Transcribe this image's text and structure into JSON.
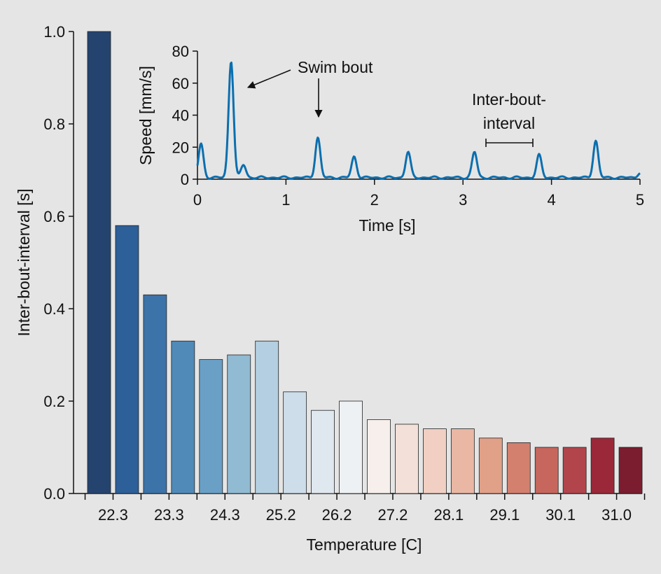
{
  "chart_data": [
    {
      "type": "bar",
      "title": "",
      "xlabel": "Temperature [C]",
      "ylabel": "Inter-bout-interval [s]",
      "ylim": [
        0,
        1.0
      ],
      "yticks": [
        "0.0",
        "0.2",
        "0.4",
        "0.6",
        "0.8",
        "1.0"
      ],
      "xtick_labels": [
        "22.3",
        "23.3",
        "24.3",
        "25.2",
        "26.2",
        "27.2",
        "28.1",
        "29.1",
        "30.1",
        "31.0"
      ],
      "values": [
        1.0,
        0.58,
        0.43,
        0.33,
        0.29,
        0.3,
        0.33,
        0.22,
        0.18,
        0.2,
        0.16,
        0.15,
        0.14,
        0.14,
        0.12,
        0.11,
        0.1,
        0.1,
        0.12,
        0.1
      ],
      "colors": [
        "#24446f",
        "#2d5f98",
        "#3c73a8",
        "#4f8ab8",
        "#6a9fc6",
        "#91bad3",
        "#b3cfe1",
        "#cddde9",
        "#dfe7ef",
        "#eef1f4",
        "#f6efec",
        "#f3e0d8",
        "#f1cfc2",
        "#e9b7a4",
        "#e1a088",
        "#d4806e",
        "#c6665c",
        "#b1454b",
        "#9b2838",
        "#7b1d2e"
      ],
      "grid": false
    },
    {
      "type": "line",
      "title": "",
      "xlabel": "Time [s]",
      "ylabel": "Speed [mm/s]",
      "xlim": [
        0,
        5
      ],
      "ylim": [
        0,
        80
      ],
      "xticks": [
        "0",
        "1",
        "2",
        "3",
        "4",
        "5"
      ],
      "yticks": [
        "0",
        "20",
        "40",
        "60",
        "80"
      ],
      "color": "#0b6faf",
      "series": [
        {
          "baseline": 1,
          "peaks": [
            {
              "t": 0.04,
              "speed": 22
            },
            {
              "t": 0.38,
              "speed": 74
            },
            {
              "t": 0.52,
              "speed": 9
            },
            {
              "t": 1.36,
              "speed": 26
            },
            {
              "t": 1.77,
              "speed": 14
            },
            {
              "t": 2.38,
              "speed": 17
            },
            {
              "t": 3.13,
              "speed": 17
            },
            {
              "t": 3.86,
              "speed": 15
            },
            {
              "t": 4.5,
              "speed": 24
            },
            {
              "t": 5.0,
              "speed": 4
            }
          ]
        }
      ],
      "annotations": {
        "swim_bout": "Swim bout",
        "inter_bout_line1": "Inter-bout-",
        "inter_bout_line2": "interval"
      },
      "grid": false
    }
  ]
}
